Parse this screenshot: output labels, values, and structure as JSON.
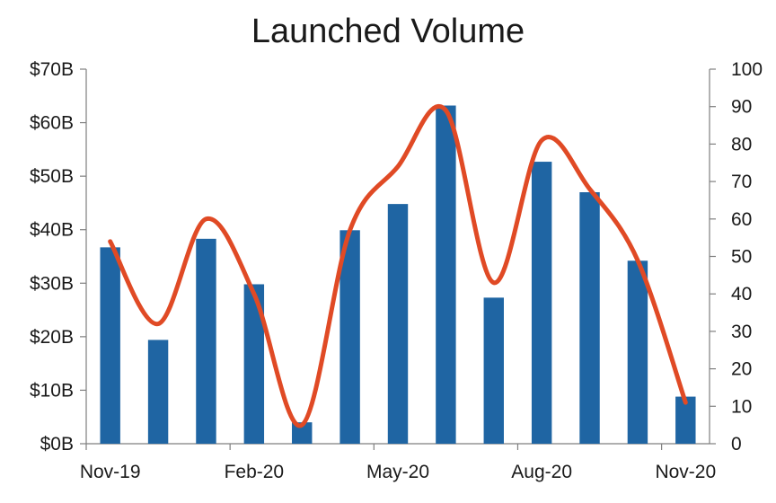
{
  "chart_data": {
    "type": "bar",
    "title": "Launched Volume",
    "categories": [
      "Nov-19",
      "Dec-19",
      "Jan-20",
      "Feb-20",
      "Mar-20",
      "Apr-20",
      "May-20",
      "Jun-20",
      "Jul-20",
      "Aug-20",
      "Sep-20",
      "Oct-20",
      "Nov-20"
    ],
    "x_tick_labels": [
      "Nov-19",
      "Feb-20",
      "May-20",
      "Aug-20",
      "Nov-20"
    ],
    "x_tick_indices": [
      0,
      3,
      6,
      9,
      12
    ],
    "series": [
      {
        "type": "bar",
        "axis": "left",
        "color": "#1f65a3",
        "values": [
          36.7,
          19.4,
          38.3,
          29.8,
          4.0,
          39.9,
          44.8,
          63.2,
          27.3,
          52.7,
          47.0,
          34.2,
          8.8
        ]
      },
      {
        "type": "line",
        "axis": "right",
        "color": "#e04a25",
        "smooth": true,
        "values": [
          54,
          32,
          60,
          40,
          5,
          57,
          74,
          89,
          43,
          81,
          68,
          49,
          11
        ]
      }
    ],
    "y_left": {
      "min": 0,
      "max": 70,
      "ticks": [
        0,
        10,
        20,
        30,
        40,
        50,
        60,
        70
      ],
      "tick_labels": [
        "$0B",
        "$10B",
        "$20B",
        "$30B",
        "$40B",
        "$50B",
        "$60B",
        "$70B"
      ]
    },
    "y_right": {
      "min": 0,
      "max": 100,
      "ticks": [
        0,
        10,
        20,
        30,
        40,
        50,
        60,
        70,
        80,
        90,
        100
      ],
      "tick_labels": [
        "0",
        "10",
        "20",
        "30",
        "40",
        "50",
        "60",
        "70",
        "80",
        "90",
        "100"
      ]
    },
    "grid": false,
    "legend": "none"
  }
}
